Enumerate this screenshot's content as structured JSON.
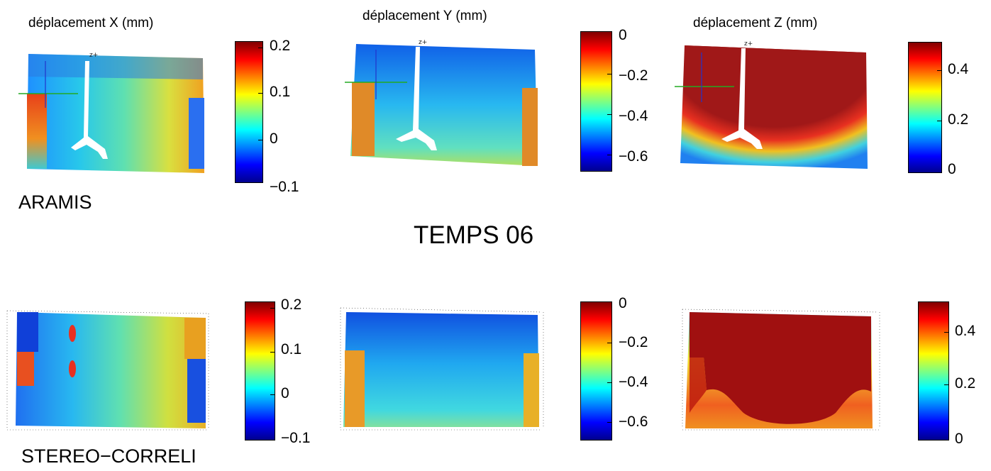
{
  "top_row": {
    "titles": [
      "déplacement X (mm)",
      "déplacement Y (mm)",
      "déplacement Z (mm)"
    ],
    "axis_marker": "z+",
    "colorbars": [
      {
        "ticks": [
          "0.2",
          "0.1",
          "0",
          "−0.1"
        ]
      },
      {
        "ticks": [
          "0",
          "−0.2",
          "−0.4",
          "−0.6"
        ]
      },
      {
        "ticks": [
          "0.4",
          "0.2",
          "0"
        ]
      }
    ]
  },
  "labels": {
    "aramis": "ARAMIS",
    "temps": "TEMPS 06",
    "stereo": "STEREO−CORRELI"
  },
  "bottom_row": {
    "colorbars": [
      {
        "ticks": [
          "0.2",
          "0.1",
          "0",
          "−0.1"
        ]
      },
      {
        "ticks": [
          "0",
          "−0.2",
          "−0.4",
          "−0.6"
        ]
      },
      {
        "ticks": [
          "0.4",
          "0.2",
          "0"
        ]
      }
    ]
  },
  "colormap": {
    "name": "jet",
    "colors": [
      "#00008f",
      "#0000ff",
      "#0080ff",
      "#00ffff",
      "#80ff80",
      "#ffff00",
      "#ff8000",
      "#ff0000",
      "#800000"
    ]
  }
}
